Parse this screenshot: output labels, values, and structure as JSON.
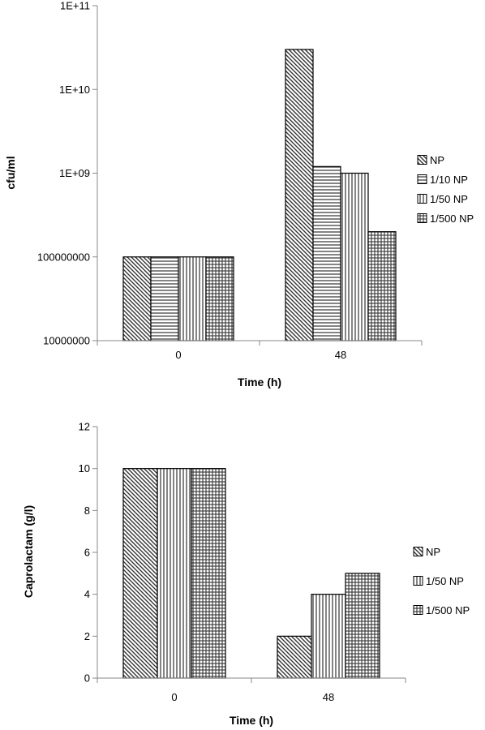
{
  "chart_data": [
    {
      "type": "bar",
      "scale": "log",
      "categories": [
        "0",
        "48"
      ],
      "series": [
        {
          "name": "NP",
          "values": [
            100000000,
            30000000000
          ],
          "pattern": "diag-down"
        },
        {
          "name": "1/10 NP",
          "values": [
            100000000,
            1200000000
          ],
          "pattern": "horizontal"
        },
        {
          "name": "1/50 NP",
          "values": [
            100000000,
            1000000000
          ],
          "pattern": "vertical"
        },
        {
          "name": "1/500 NP",
          "values": [
            100000000,
            200000000
          ],
          "pattern": "grid"
        }
      ],
      "y_ticks": [
        {
          "value": 10000000,
          "label": "10000000"
        },
        {
          "value": 100000000,
          "label": "100000000"
        },
        {
          "value": 1000000000,
          "label": "1E+09"
        },
        {
          "value": 10000000000,
          "label": "1E+10"
        },
        {
          "value": 100000000000,
          "label": "1E+11"
        }
      ],
      "ylim": [
        10000000,
        100000000000
      ],
      "xlabel": "Time (h)",
      "ylabel": "cfu/ml",
      "legend_position": "right"
    },
    {
      "type": "bar",
      "scale": "linear",
      "categories": [
        "0",
        "48"
      ],
      "series": [
        {
          "name": "NP",
          "values": [
            10,
            2
          ],
          "pattern": "diag-down"
        },
        {
          "name": "1/50 NP",
          "values": [
            10,
            4
          ],
          "pattern": "vertical"
        },
        {
          "name": "1/500 NP",
          "values": [
            10,
            5
          ],
          "pattern": "grid"
        }
      ],
      "y_ticks": [
        {
          "value": 0,
          "label": "0"
        },
        {
          "value": 2,
          "label": "2"
        },
        {
          "value": 4,
          "label": "4"
        },
        {
          "value": 6,
          "label": "6"
        },
        {
          "value": 8,
          "label": "8"
        },
        {
          "value": 10,
          "label": "10"
        },
        {
          "value": 12,
          "label": "12"
        }
      ],
      "ylim": [
        0,
        12
      ],
      "xlabel": "Time (h)",
      "ylabel": "Caprolactam (g/l)",
      "legend_position": "right"
    }
  ]
}
